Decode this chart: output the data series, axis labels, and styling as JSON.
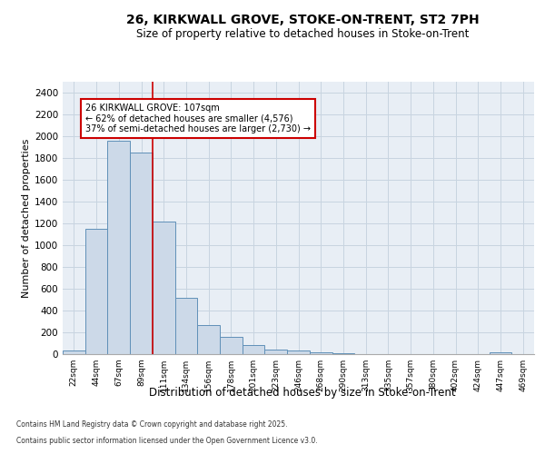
{
  "title1": "26, KIRKWALL GROVE, STOKE-ON-TRENT, ST2 7PH",
  "title2": "Size of property relative to detached houses in Stoke-on-Trent",
  "xlabel": "Distribution of detached houses by size in Stoke-on-Trent",
  "ylabel": "Number of detached properties",
  "categories": [
    "22sqm",
    "44sqm",
    "67sqm",
    "89sqm",
    "111sqm",
    "134sqm",
    "156sqm",
    "178sqm",
    "201sqm",
    "223sqm",
    "246sqm",
    "268sqm",
    "290sqm",
    "313sqm",
    "335sqm",
    "357sqm",
    "380sqm",
    "402sqm",
    "424sqm",
    "447sqm",
    "469sqm"
  ],
  "bar_heights": [
    30,
    1150,
    1960,
    1850,
    1220,
    520,
    270,
    155,
    80,
    40,
    35,
    20,
    8,
    2,
    1,
    0,
    0,
    0,
    0,
    18,
    0
  ],
  "bar_color": "#ccd9e8",
  "bar_edge_color": "#6090b8",
  "grid_color": "#c8d4e0",
  "background_color": "#e8eef5",
  "red_line_x": 3.5,
  "annotation_text": "26 KIRKWALL GROVE: 107sqm\n← 62% of detached houses are smaller (4,576)\n37% of semi-detached houses are larger (2,730) →",
  "ylim": [
    0,
    2500
  ],
  "yticks": [
    0,
    200,
    400,
    600,
    800,
    1000,
    1200,
    1400,
    1600,
    1800,
    2000,
    2200,
    2400
  ],
  "footer1": "Contains HM Land Registry data © Crown copyright and database right 2025.",
  "footer2": "Contains public sector information licensed under the Open Government Licence v3.0."
}
